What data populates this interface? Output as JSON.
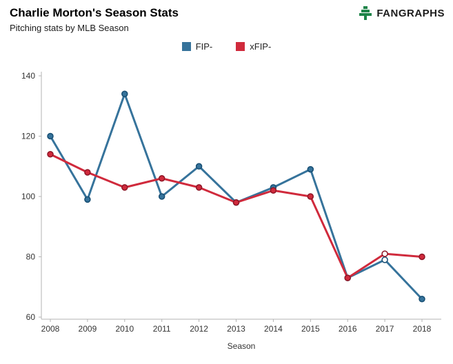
{
  "header": {
    "title": "Charlie Morton's Season Stats",
    "subtitle": "Pitching stats by MLB Season"
  },
  "logo": {
    "text": "FANGRAPHS",
    "icon": "fangraphs-tree-icon",
    "icon_color": "#1e8449"
  },
  "chart_data": {
    "type": "line",
    "x": [
      2008,
      2009,
      2010,
      2011,
      2012,
      2013,
      2014,
      2015,
      2016,
      2017,
      2018
    ],
    "series": [
      {
        "name": "FIP-",
        "color": "#36739b",
        "marker_stroke": "#174e73",
        "values": [
          120,
          99,
          134,
          100,
          110,
          98,
          103,
          109,
          73,
          79,
          66
        ],
        "open_marker_x": [
          2017
        ]
      },
      {
        "name": "xFIP-",
        "color": "#d02a3c",
        "marker_stroke": "#8e1626",
        "values": [
          114,
          108,
          103,
          106,
          103,
          98,
          102,
          100,
          73,
          81,
          80
        ],
        "open_marker_x": [
          2017
        ]
      }
    ],
    "xlabel": "Season",
    "ylabel": "",
    "ylim": [
      60,
      140
    ],
    "yticks": [
      60,
      80,
      100,
      120,
      140
    ],
    "grid": false,
    "legend_position": "top-center",
    "axis_color": "#b3b3b3"
  }
}
